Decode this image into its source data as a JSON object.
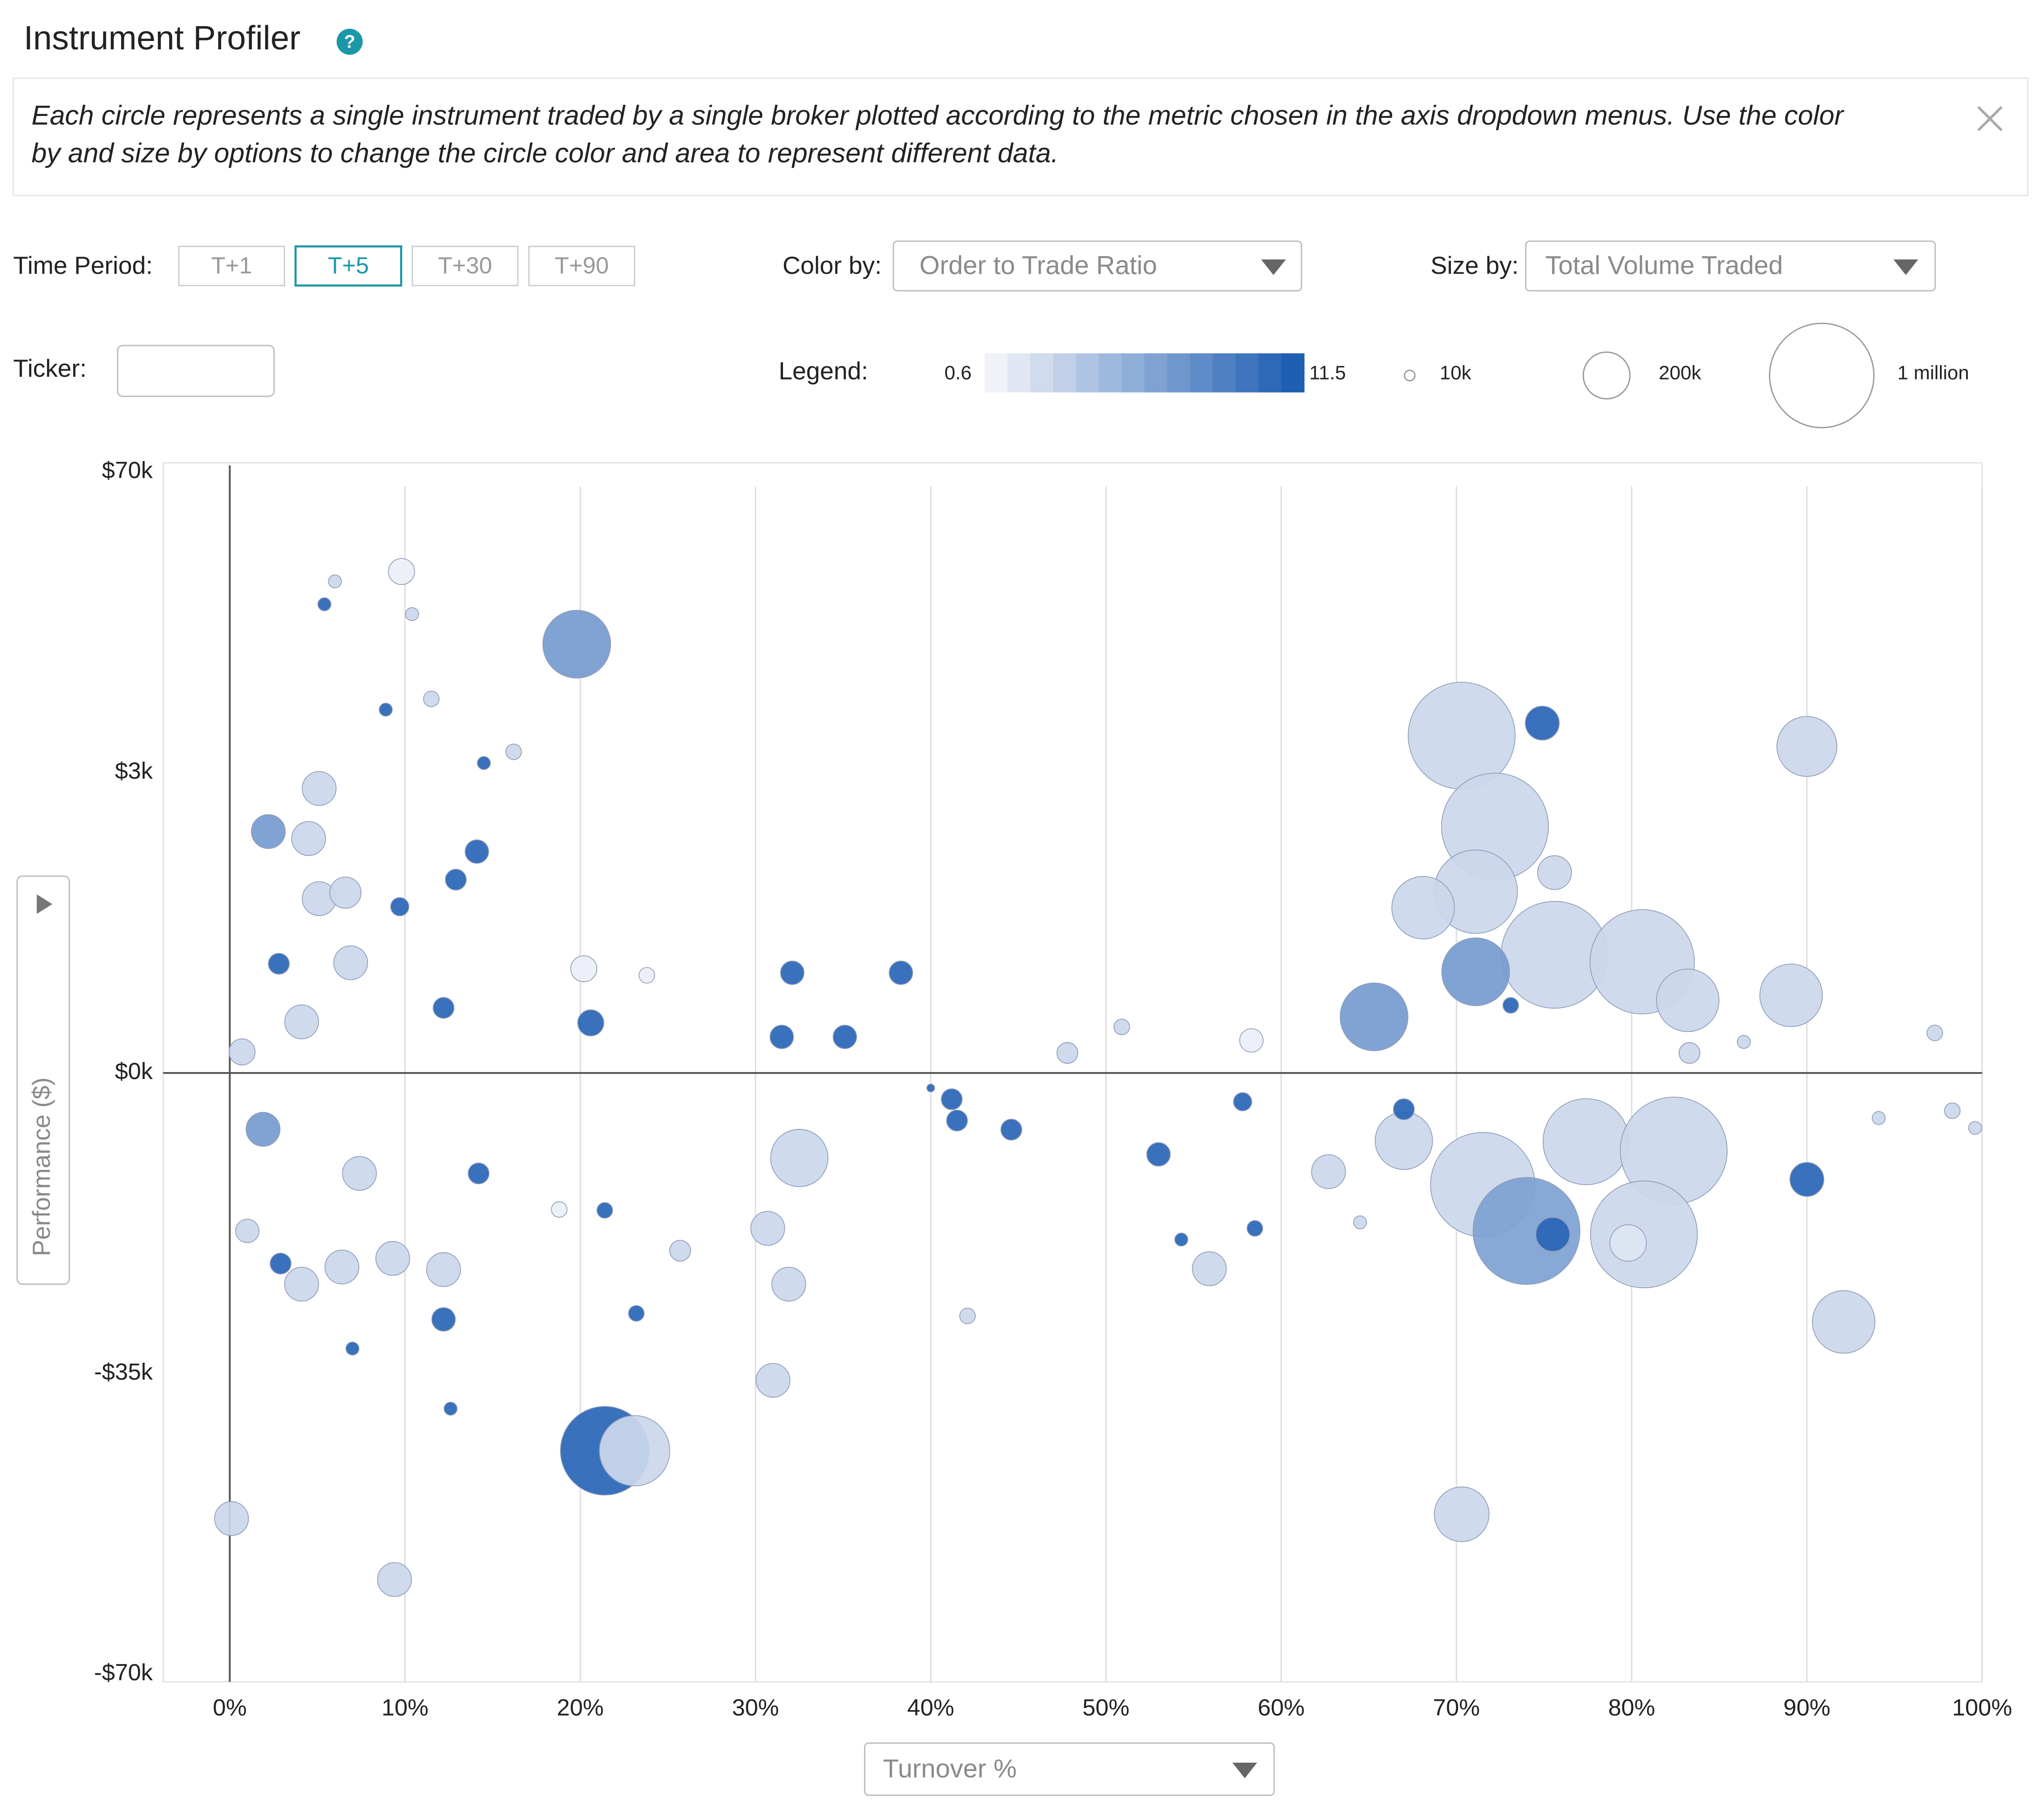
{
  "header": {
    "title": "Instrument Profiler"
  },
  "info": {
    "lines": [
      "Each circle represents a single instrument traded by a single broker plotted according to the metric chosen in the axis dropdown menus.  Use the color",
      "by and size by options to change the circle color and area to represent different data."
    ]
  },
  "controls": {
    "time_period_label": "Time Period:",
    "time_periods": [
      "T+1",
      "T+5",
      "T+30",
      "T+90"
    ],
    "active_period": 1,
    "color_by_label": "Color by:",
    "color_by": "Order to Trade Ratio",
    "size_by_label": "Size by:",
    "size_by": "Total Volume Traded",
    "ticker_label": "Ticker:",
    "legend_label": "Legend:"
  },
  "chart_data": {
    "type": "bubble",
    "x_label": "Turnover %",
    "y_label": "Performance ($)",
    "xlim": [
      -3.8,
      100
    ],
    "xticks": [
      {
        "value": 0,
        "label": "0%"
      },
      {
        "value": 10,
        "label": "10%"
      },
      {
        "value": 20,
        "label": "20%"
      },
      {
        "value": 30,
        "label": "30%"
      },
      {
        "value": 40,
        "label": "40%"
      },
      {
        "value": 50,
        "label": "50%"
      },
      {
        "value": 60,
        "label": "60%"
      },
      {
        "value": 70,
        "label": "70%"
      },
      {
        "value": 80,
        "label": "80%"
      },
      {
        "value": 90,
        "label": "90%"
      },
      {
        "value": 100,
        "label": "100%"
      }
    ],
    "ylim": [
      -70000,
      70000
    ],
    "yscale": "piecewise",
    "yticks": [
      {
        "value": -70000,
        "label": "-$70k"
      },
      {
        "value": -35000,
        "label": "-$35k"
      },
      {
        "value": 0,
        "label": "$0k"
      },
      {
        "value": 3000,
        "label": "$3k"
      },
      {
        "value": 70000,
        "label": "$70k"
      }
    ],
    "grid": true,
    "color_scale": {
      "min": 0.6,
      "max": 11.5,
      "colors": [
        "#f0f2f8",
        "#1e5eb3"
      ]
    },
    "size_legend": [
      {
        "value": 10000,
        "label": "10k"
      },
      {
        "value": 200000,
        "label": "200k"
      },
      {
        "value": 1000000,
        "label": "1 million"
      }
    ],
    "x": [
      19.8,
      70.3,
      74.9,
      90.0,
      72.2,
      71.1,
      68.1,
      75.6,
      80.6,
      83.2,
      89.1,
      71.1,
      65.3,
      75.6,
      71.5,
      74.0,
      75.5,
      77.4,
      82.4,
      80.7,
      79.8,
      67.0,
      90.0,
      92.1,
      21.4,
      23.1,
      70.3,
      0.1,
      9.4,
      9.8,
      5.4,
      6.0,
      10.4,
      8.9,
      11.5,
      14.5,
      16.2,
      5.1,
      2.2,
      4.5,
      14.1,
      12.9,
      31.0,
      31.9,
      30.7,
      12.2,
      55.9,
      53.0,
      41.2,
      32.1,
      38.3,
      31.5,
      35.1,
      20.6,
      20.2,
      58.3,
      62.7,
      44.6,
      32.5,
      4.1,
      1.9,
      9.3,
      6.4,
      12.2,
      7.4,
      1.0,
      2.9,
      4.1,
      6.9,
      5.1,
      6.6,
      0.7,
      2.8,
      12.2,
      9.7,
      67.0,
      57.8,
      41.5,
      14.2,
      21.4,
      23.2,
      12.6,
      7.0,
      42.1,
      25.7,
      73.1,
      83.3,
      97.3,
      98.3,
      94.1,
      86.4,
      99.6,
      47.8,
      50.9,
      40.0,
      64.5,
      54.3,
      58.5,
      18.8,
      23.8
    ],
    "values": [
      31600,
      11200,
      14000,
      8800,
      2460,
      1810,
      1650,
      1180,
      1110,
      725,
      775,
      1010,
      560,
      2000,
      -13000,
      -18400,
      -18800,
      -8000,
      -9040,
      -18800,
      -19800,
      -7900,
      -12400,
      -29000,
      -44000,
      -44000,
      -51400,
      -51900,
      -59000,
      47800,
      40500,
      45600,
      38300,
      17000,
      19400,
      5100,
      7600,
      2840,
      2410,
      2340,
      2210,
      1930,
      -35800,
      -24600,
      -18100,
      -28700,
      -22800,
      -9480,
      -3060,
      1000,
      1000,
      360,
      360,
      500,
      1040,
      325,
      -11500,
      -6600,
      -9900,
      -24600,
      -6560,
      -21600,
      -22600,
      -22900,
      -11700,
      -18400,
      -22200,
      510,
      1100,
      1740,
      1800,
      210,
      1090,
      650,
      1660,
      -4230,
      -3350,
      -5540,
      -11700,
      -16000,
      -28000,
      -39100,
      -32100,
      -28300,
      -20700,
      675,
      200,
      400,
      -4400,
      -5250,
      310,
      -6400,
      200,
      460,
      -1750,
      -17400,
      -19400,
      -18100,
      -15900,
      975
    ],
    "sizes": [
      422500,
      1050600,
      105600,
      330600,
      1050600,
      640000,
      360000,
      1050600,
      1000000,
      360000,
      360000,
      422500,
      422500,
      105600,
      1000000,
      1050600,
      105600,
      680600,
      1050600,
      1050600,
      122500,
      302500,
      105600,
      360000,
      722500,
      455600,
      275600,
      105600,
      105600,
      62500,
      15600,
      15600,
      15600,
      15600,
      22500,
      15600,
      22500,
      105600,
      105600,
      105600,
      50600,
      40000,
      105600,
      105600,
      105600,
      50600,
      105600,
      50600,
      40000,
      50600,
      50600,
      50600,
      50600,
      62500,
      62500,
      50600,
      105600,
      40000,
      302500,
      105600,
      105600,
      105600,
      105600,
      105600,
      105600,
      50600,
      40000,
      105600,
      105600,
      105600,
      90000,
      62500,
      40000,
      40000,
      30600,
      40000,
      30600,
      40000,
      40000,
      22500,
      22500,
      15600,
      15600,
      22500,
      40000,
      22500,
      40000,
      22500,
      22500,
      15600,
      15600,
      15600,
      40000,
      22500,
      5600,
      15600,
      15600,
      22500,
      22500,
      22500
    ],
    "color_values": [
      7,
      2.5,
      11,
      2.5,
      2.5,
      2.5,
      2.5,
      2.5,
      2.5,
      2.5,
      2.5,
      7,
      7,
      2.5,
      2.5,
      6.5,
      11,
      2.5,
      2.5,
      2.5,
      1.5,
      2.5,
      11,
      2.5,
      11,
      2.5,
      2.5,
      2.5,
      2.5,
      0.8,
      11,
      2.5,
      2.5,
      11,
      2.5,
      11,
      2.5,
      2.5,
      7,
      2.5,
      11,
      11,
      2.5,
      2.5,
      2.5,
      11,
      2.5,
      11,
      11,
      11,
      11,
      11,
      11,
      11,
      0.8,
      0.8,
      2.5,
      11,
      2.5,
      2.5,
      7,
      2.5,
      2.5,
      2.5,
      2.5,
      2.5,
      11,
      2.5,
      2.5,
      2.5,
      2.5,
      2.5,
      11,
      11,
      11,
      11,
      11,
      11,
      11,
      11,
      11,
      11,
      11,
      2.5,
      2.5,
      11,
      2.5,
      2.5,
      2.5,
      2.5,
      2.5,
      2.5,
      2.5,
      2.5,
      11,
      2.5,
      11,
      11,
      0.8,
      0.8
    ]
  }
}
